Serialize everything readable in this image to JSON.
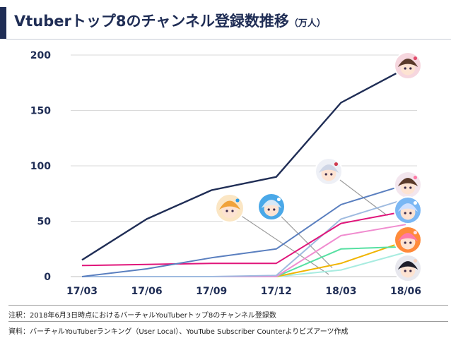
{
  "title": {
    "main": "Vtuberトップ8のチャンネル登録数推移",
    "unit": "（万人）"
  },
  "chart_data": {
    "type": "line",
    "title": "Vtuberトップ8のチャンネル登録数推移（万人）",
    "xlabel": "",
    "ylabel": "",
    "categories": [
      "17/03",
      "17/06",
      "17/09",
      "17/12",
      "18/03",
      "18/06"
    ],
    "x_ticks": [
      "17/03",
      "17/06",
      "17/09",
      "17/12",
      "18/03",
      "18/06"
    ],
    "y_ticks": [
      0,
      50,
      100,
      150,
      200
    ],
    "ylim": [
      0,
      200
    ],
    "grid": true,
    "legend": "none (avatar markers at line ends)",
    "series": [
      {
        "color": "#1f2d55",
        "values": [
          15,
          52,
          78,
          90,
          157,
          188
        ]
      },
      {
        "color": "#5a7fbf",
        "values": [
          0,
          7,
          17,
          25,
          65,
          83
        ]
      },
      {
        "color": "#e0157a",
        "values": [
          10,
          11,
          12,
          12,
          48,
          59
        ]
      },
      {
        "color": "#9fbbe0",
        "values": [
          0,
          0,
          0,
          1,
          52,
          70
        ]
      },
      {
        "color": "#f08ccf",
        "values": [
          0,
          0,
          0,
          0,
          37,
          47
        ]
      },
      {
        "color": "#56e0a2",
        "values": [
          0,
          0,
          0,
          0,
          25,
          27
        ]
      },
      {
        "color": "#f0b400",
        "values": [
          0,
          0,
          0,
          0,
          12,
          32
        ]
      },
      {
        "color": "#a8ece0",
        "values": [
          0,
          0,
          0,
          0,
          6,
          22
        ]
      }
    ]
  },
  "avatars": [
    {
      "name": "avatar-1",
      "hair": "#5a3a2a",
      "bg": "#f6d6de",
      "accent": "#e24b6b"
    },
    {
      "name": "avatar-2",
      "hair": "#cfd6e6",
      "bg": "#eef0f6",
      "accent": "#d03a4e"
    },
    {
      "name": "avatar-3",
      "hair": "#f0a33a",
      "bg": "#fbe6c4",
      "accent": "#2a9be8"
    },
    {
      "name": "avatar-4",
      "hair": "#d8e8f6",
      "bg": "#4aa8e8",
      "accent": "#ffffff"
    },
    {
      "name": "avatar-5",
      "hair": "#5a3a2a",
      "bg": "#f3e6ee",
      "accent": "#ff7aa6"
    },
    {
      "name": "avatar-6",
      "hair": "#cfe0ff",
      "bg": "#7ab7f4",
      "accent": "#ffffff"
    },
    {
      "name": "avatar-7",
      "hair": "#ff7aa6",
      "bg": "#ff8a3a",
      "accent": "#ffe0ea"
    },
    {
      "name": "avatar-8",
      "hair": "#1e1e2a",
      "bg": "#e8e8ee",
      "accent": "#f6d3c0"
    }
  ],
  "footnotes": {
    "note": "注釈：2018年6月3日時点におけるバーチャルYouTuberトップ8のチャンネル登録数",
    "source": "資料：バーチャルYouTuberランキング（User Local）、YouTube Subscriber Counterよりビズアーツ作成"
  }
}
